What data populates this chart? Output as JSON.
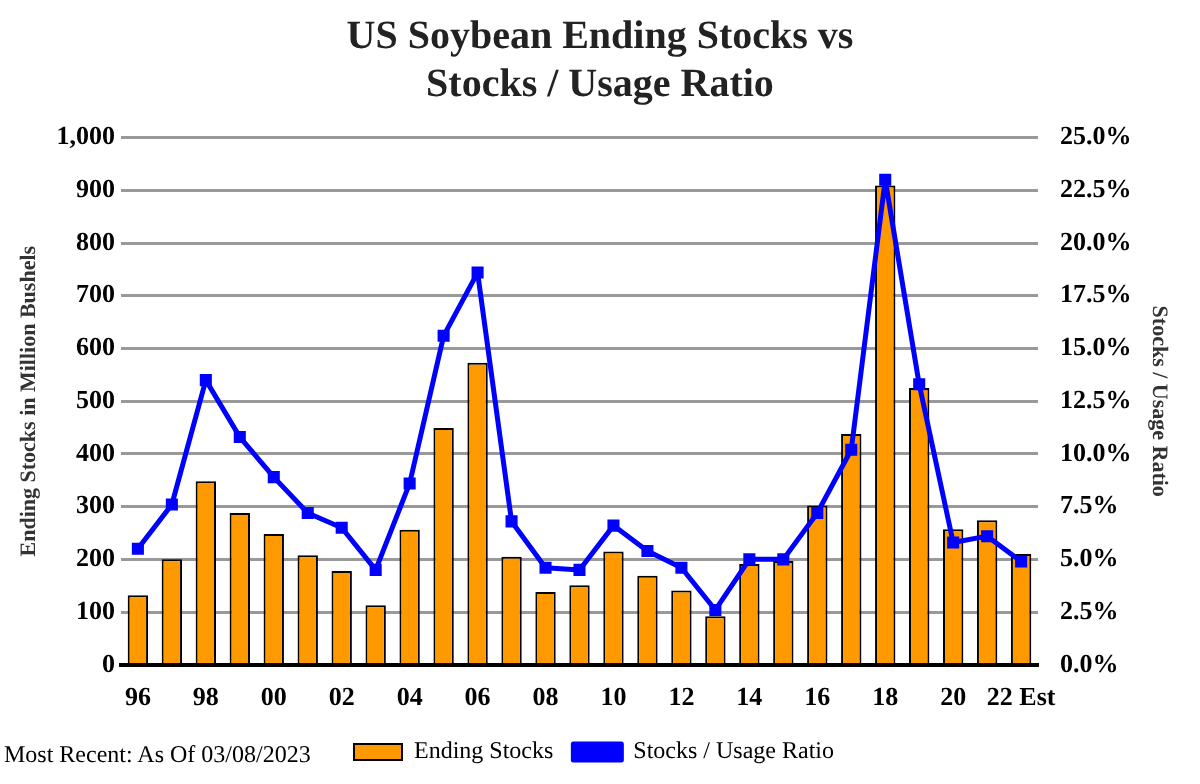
{
  "chart_data": {
    "type": "bar",
    "title": "US Soybean Ending Stocks vs Stocks / Usage Ratio",
    "ylabel": "Ending Stocks in Million Bushels",
    "y2label": "Stocks / Usage Ratio",
    "categories": [
      "96",
      null,
      "98",
      null,
      "00",
      null,
      "02",
      null,
      "04",
      null,
      "06",
      null,
      "08",
      null,
      "10",
      null,
      "12",
      null,
      "14",
      null,
      "16",
      null,
      "18",
      null,
      "20",
      null,
      "22 Est"
    ],
    "series": [
      {
        "name": "Ending Stocks",
        "color": "#ff9900",
        "values": [
          132,
          200,
          348,
          288,
          248,
          208,
          178,
          113,
          256,
          449,
          573,
          205,
          138,
          151,
          215,
          169,
          141,
          92,
          191,
          197,
          302,
          438,
          909,
          525,
          257,
          274,
          210
        ]
      },
      {
        "name": "Stocks / Usage Ratio",
        "type": "line",
        "axis": "y2",
        "color": "#0000ff",
        "marker": "square",
        "values": [
          5.5,
          7.6,
          13.5,
          10.8,
          8.9,
          7.2,
          6.5,
          4.5,
          8.6,
          15.6,
          18.6,
          6.8,
          4.6,
          4.5,
          6.6,
          5.4,
          4.6,
          2.6,
          5.0,
          5.0,
          7.2,
          10.2,
          23.0,
          13.3,
          5.8,
          6.1,
          4.9
        ]
      }
    ],
    "ylim": [
      0,
      1000
    ],
    "yticks": [
      0,
      100,
      200,
      300,
      400,
      500,
      600,
      700,
      800,
      900,
      {
        "value": 1000,
        "label": "1,000"
      }
    ],
    "y2lim": [
      0,
      25
    ],
    "y2ticks": [
      {
        "value": 0,
        "label": "0.0%"
      },
      {
        "value": 2.5,
        "label": "2.5%"
      },
      {
        "value": 5,
        "label": "5.0%"
      },
      {
        "value": 7.5,
        "label": "7.5%"
      },
      {
        "value": 10,
        "label": "10.0%"
      },
      {
        "value": 12.5,
        "label": "12.5%"
      },
      {
        "value": 15,
        "label": "15.0%"
      },
      {
        "value": 17.5,
        "label": "17.5%"
      },
      {
        "value": 20,
        "label": "20.0%"
      },
      {
        "value": 22.5,
        "label": "22.5%"
      },
      {
        "value": 25,
        "label": "25.0%"
      }
    ],
    "grid": "y",
    "legend": "bottom",
    "annotations": [
      "Most Recent: As Of 03/08/2023"
    ]
  }
}
